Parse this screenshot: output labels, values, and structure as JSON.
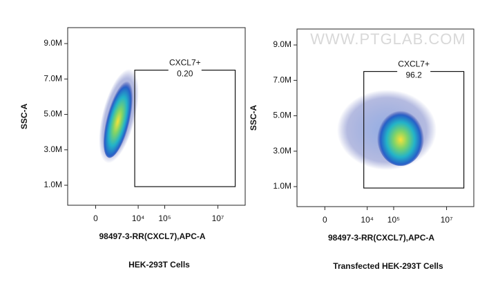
{
  "watermark": "WWW.PTGLAB.COM",
  "chart_data": [
    {
      "type": "scatter",
      "title": "HEK-293T Cells",
      "x_label": "98497-3-RR(CXCL7),APC-A",
      "y_label": "SSC-A",
      "xscale": "biexponential",
      "xscale_width": 500,
      "xlim": [
        -2800,
        107000000
      ],
      "ylim": [
        -130000,
        9900000
      ],
      "xticks": [
        0,
        {
          "value": 10000,
          "label": "10⁴"
        },
        {
          "value": 100000,
          "label": "10⁵"
        },
        {
          "value": 10000000,
          "label": "10⁷"
        }
      ],
      "yticks": [
        {
          "value": 1000000,
          "label": "1.0M"
        },
        {
          "value": 3000000,
          "label": "3.0M"
        },
        {
          "value": 5000000,
          "label": "5.0M"
        },
        {
          "value": 7000000,
          "label": "7.0M"
        },
        {
          "value": 9000000,
          "label": "9.0M"
        }
      ],
      "gate": {
        "name": "CXCL7+",
        "value": 0.2,
        "value_label": "0.20",
        "x": [
          7400,
          45000000
        ],
        "y": [
          920000,
          7500000
        ]
      }
    },
    {
      "type": "scatter",
      "title": "Transfected HEK-293T Cells",
      "x_label": "98497-3-RR(CXCL7),APC-A",
      "y_label": "SSC-A",
      "xscale": "biexponential",
      "xscale_width": 500,
      "xlim": [
        -2800,
        107000000
      ],
      "ylim": [
        -130000,
        9900000
      ],
      "xticks": [
        0,
        {
          "value": 10000,
          "label": "10⁴"
        },
        {
          "value": 100000,
          "label": "10⁵"
        },
        {
          "value": 10000000,
          "label": "10⁷"
        }
      ],
      "yticks": [
        {
          "value": 1000000,
          "label": "1.0M"
        },
        {
          "value": 3000000,
          "label": "3.0M"
        },
        {
          "value": 5000000,
          "label": "5.0M"
        },
        {
          "value": 7000000,
          "label": "7.0M"
        },
        {
          "value": 9000000,
          "label": "9.0M"
        }
      ],
      "gate": {
        "name": "CXCL7+",
        "value": 96.2,
        "value_label": "96.2",
        "x": [
          7400,
          45000000
        ],
        "y": [
          920000,
          7500000
        ]
      }
    }
  ]
}
